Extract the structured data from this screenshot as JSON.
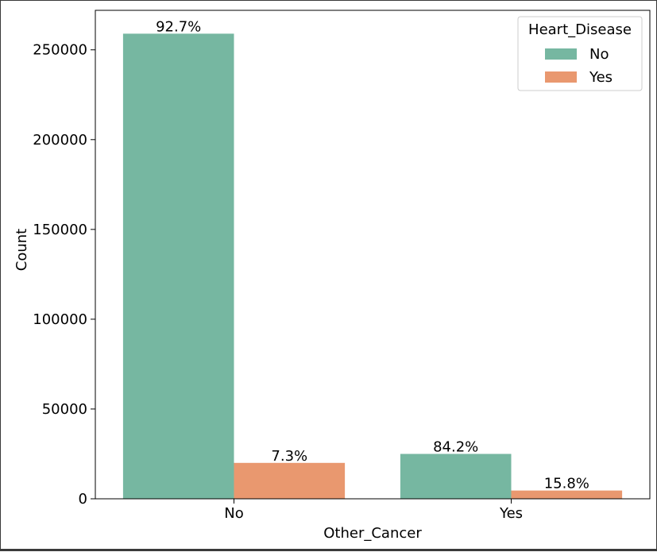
{
  "chart_data": {
    "type": "bar",
    "title": "",
    "xlabel": "Other_Cancer",
    "ylabel": "Count",
    "categories": [
      "No",
      "Yes"
    ],
    "series": [
      {
        "name": "No",
        "color": "#76b7a1",
        "values": [
          259000,
          25000
        ],
        "labels": [
          "92.7%",
          "84.2%"
        ]
      },
      {
        "name": "Yes",
        "color": "#e9986f",
        "values": [
          20000,
          4600
        ],
        "labels": [
          "7.3%",
          "15.8%"
        ]
      }
    ],
    "yticks": [
      0,
      50000,
      100000,
      150000,
      200000,
      250000
    ],
    "ytick_labels": [
      "0",
      "50000",
      "100000",
      "150000",
      "200000",
      "250000"
    ],
    "ylim": [
      0,
      272000
    ],
    "legend": {
      "title": "Heart_Disease",
      "position": "top-right"
    },
    "grid": false
  }
}
